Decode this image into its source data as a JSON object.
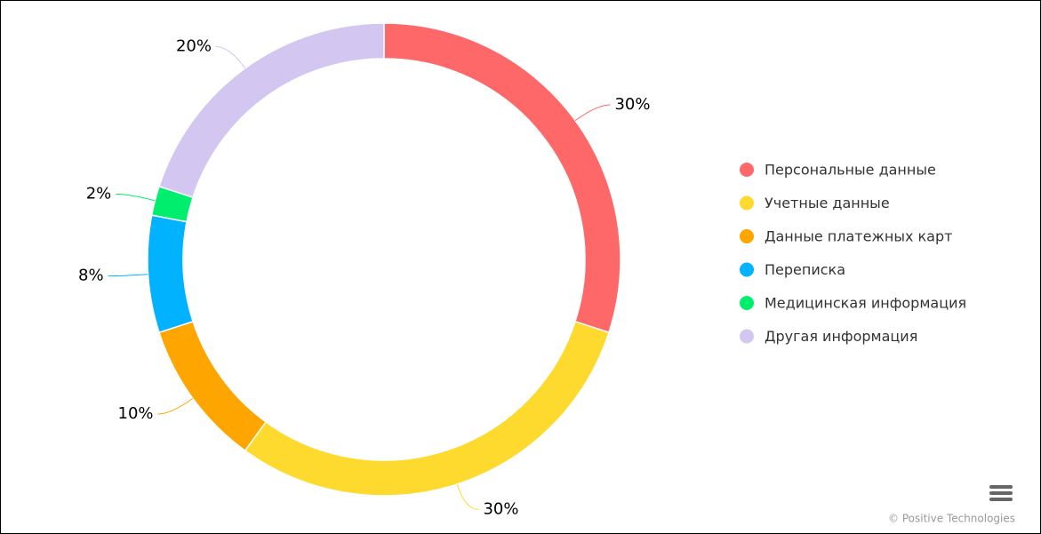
{
  "chart_data": {
    "type": "pie",
    "categories": [
      "Персональные данные",
      "Учетные данные",
      "Данные платежных карт",
      "Переписка",
      "Медицинская информация",
      "Другая информация"
    ],
    "values": [
      30,
      30,
      10,
      8,
      2,
      20
    ],
    "value_labels": [
      "30%",
      "30%",
      "10%",
      "8%",
      "2%",
      "20%"
    ],
    "colors": [
      "#ff6868",
      "#fed92e",
      "#fea500",
      "#00b2ff",
      "#00ee6e",
      "#d3c6f0"
    ],
    "legend": "right",
    "credits": "© Positive Technologies"
  }
}
